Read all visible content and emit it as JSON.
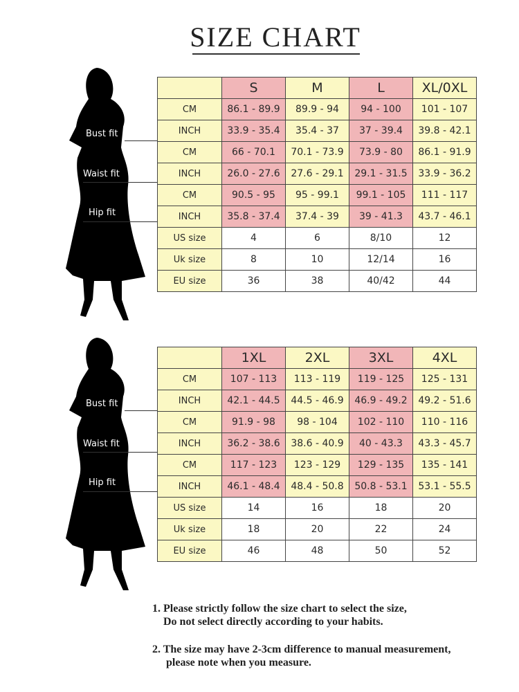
{
  "title": "SIZE CHART",
  "fit_labels": {
    "bust": "Bust fit",
    "waist": "Waist fit",
    "hip": "Hip fit"
  },
  "colors": {
    "pink": "#f1b6b8",
    "yellow": "#fbf8c4"
  },
  "tables": [
    {
      "headers": [
        "S",
        "M",
        "L",
        "XL/0XL"
      ],
      "rows": [
        {
          "label": "CM",
          "values": [
            "86.1 - 89.9",
            "89.9 - 94",
            "94 - 100",
            "101 - 107"
          ]
        },
        {
          "label": "INCH",
          "values": [
            "33.9 - 35.4",
            "35.4 - 37",
            "37 - 39.4",
            "39.8 - 42.1"
          ]
        },
        {
          "label": "CM",
          "values": [
            "66 - 70.1",
            "70.1 - 73.9",
            "73.9 - 80",
            "86.1 - 91.9"
          ]
        },
        {
          "label": "INCH",
          "values": [
            "26.0 - 27.6",
            "27.6 - 29.1",
            "29.1 - 31.5",
            "33.9 - 36.2"
          ]
        },
        {
          "label": "CM",
          "values": [
            "90.5 - 95",
            "95 - 99.1",
            "99.1 - 105",
            "111 - 117"
          ]
        },
        {
          "label": "INCH",
          "values": [
            "35.8 - 37.4",
            "37.4 - 39",
            "39 - 41.3",
            "43.7 - 46.1"
          ]
        },
        {
          "label": "US size",
          "values": [
            "4",
            "6",
            "8/10",
            "12"
          ]
        },
        {
          "label": "Uk size",
          "values": [
            "8",
            "10",
            "12/14",
            "16"
          ]
        },
        {
          "label": "EU size",
          "values": [
            "36",
            "38",
            "40/42",
            "44"
          ]
        }
      ]
    },
    {
      "headers": [
        "1XL",
        "2XL",
        "3XL",
        "4XL"
      ],
      "rows": [
        {
          "label": "CM",
          "values": [
            "107 - 113",
            "113 - 119",
            "119 - 125",
            "125 - 131"
          ]
        },
        {
          "label": "INCH",
          "values": [
            "42.1 - 44.5",
            "44.5 - 46.9",
            "46.9 - 49.2",
            "49.2 - 51.6"
          ]
        },
        {
          "label": "CM",
          "values": [
            "91.9 - 98",
            "98 - 104",
            "102 - 110",
            "110 - 116"
          ]
        },
        {
          "label": "INCH",
          "values": [
            "36.2 - 38.6",
            "38.6 - 40.9",
            "40 - 43.3",
            "43.3 - 45.7"
          ]
        },
        {
          "label": "CM",
          "values": [
            "117 - 123",
            "123 - 129",
            "129 - 135",
            "135 - 141"
          ]
        },
        {
          "label": "INCH",
          "values": [
            "46.1 - 48.4",
            "48.4 - 50.8",
            "50.8 - 53.1",
            "53.1 - 55.5"
          ]
        },
        {
          "label": "US size",
          "values": [
            "14",
            "16",
            "18",
            "20"
          ]
        },
        {
          "label": "Uk size",
          "values": [
            "18",
            "20",
            "22",
            "24"
          ]
        },
        {
          "label": "EU size",
          "values": [
            "46",
            "48",
            "50",
            "52"
          ]
        }
      ]
    }
  ],
  "notes": [
    {
      "line1": "1.  Please strictly follow the size chart to select the size,",
      "line2": "Do not select directly according to your habits."
    },
    {
      "line1": "2.  The size may have 2-3cm difference  to manual measurement,",
      "line2": "please note when you measure."
    }
  ]
}
